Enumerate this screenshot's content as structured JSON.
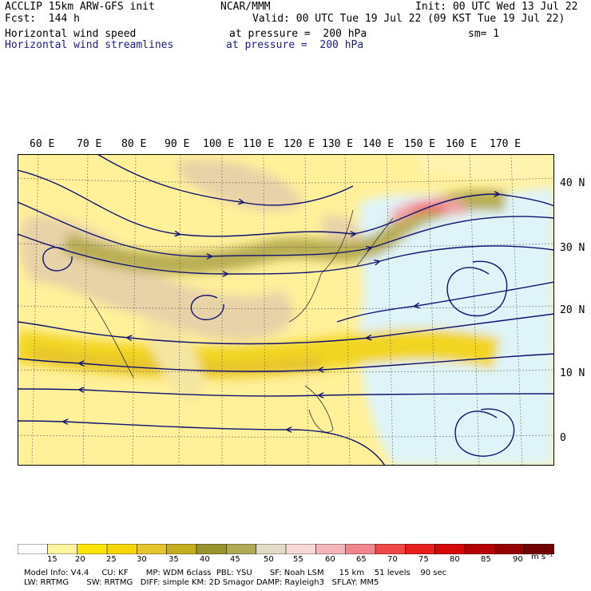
{
  "header": {
    "model_title": "ACCLIP 15km ARW-GFS init",
    "org": "NCAR/MMM",
    "init_time": "Init: 00 UTC Wed 13 Jul 22",
    "forecast": "Fcst:  144 h",
    "valid_time": "Valid: 00 UTC Tue 19 Jul 22 (09 KST Tue 19 Jul 22)",
    "field1_name": "Horizontal wind speed",
    "field1_level": "at pressure =  200 hPa",
    "smoothing": "sm= 1",
    "field2_name": "Horizontal wind streamlines",
    "field2_level": "at pressure =  200 hPa"
  },
  "map": {
    "lon_labels": [
      "60 E",
      "70 E",
      "80 E",
      "90 E",
      "100 E",
      "110 E",
      "120 E",
      "130 E",
      "140 E",
      "150 E",
      "160 E",
      "170 E"
    ],
    "lat_labels": [
      "40 N",
      "30 N",
      "20 N",
      "10 N",
      "0"
    ],
    "colors": {
      "land": "#e8d2a8",
      "ocean_calm": "#dff4f8",
      "streamline": "#101070",
      "gridline": "#555555"
    }
  },
  "colorbar": {
    "labels": [
      "15",
      "20",
      "25",
      "30",
      "35",
      "40",
      "45",
      "50",
      "55",
      "60",
      "65",
      "70",
      "75",
      "80",
      "85",
      "90"
    ],
    "unit": "m s⁻¹",
    "colors": [
      "#ffffff",
      "#fff5a0",
      "#ffe600",
      "#f4d800",
      "#e6c42e",
      "#c2ae1e",
      "#9a9430",
      "#b0aa56",
      "#e2dcc6",
      "#fad8d8",
      "#f4b6b8",
      "#f2868e",
      "#f04848",
      "#e81e1e",
      "#d40808",
      "#b40000",
      "#940000",
      "#720000"
    ]
  },
  "footer": {
    "line1": "Model Info: V4.4     CU: KF       MP: WDM 6class  PBL: YSU       SF: Noah LSM      15 km    51 levels    90 sec",
    "line2": "LW: RRTMG       SW: RRTMG   DIFF: simple KM: 2D Smagor DAMP: Rayleigh3   SFLAY: MM5"
  }
}
